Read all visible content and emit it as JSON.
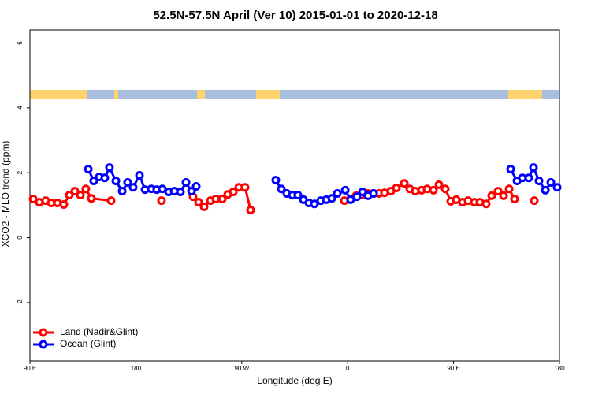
{
  "chart_data": {
    "type": "line",
    "title": "52.5N-57.5N April (Ver 10)   2015-01-01 to 2020-12-18",
    "x_label": "Longitude (deg E)",
    "y_label": "XCO2 - MLO trend (ppm)",
    "xlim": [
      90,
      540
    ],
    "xticks": [
      {
        "value": 90,
        "label": "90 E"
      },
      180,
      {
        "value": 270,
        "label": "90 W"
      },
      {
        "value": 360,
        "label": "0"
      },
      {
        "value": 450,
        "label": "90 E"
      },
      {
        "value": 540,
        "label": "180"
      }
    ],
    "ylim": [
      -3.8,
      6.4
    ],
    "yticks": [
      -2,
      0,
      2,
      4,
      6
    ],
    "legend": "bottom-left",
    "series": [
      {
        "name": "Land (Nadir&Glint)",
        "color": "#ff0000",
        "x": [
          92.7,
          98.0,
          103.4,
          108.1,
          113.4,
          118.8,
          123.5,
          128.2,
          132.9,
          137.5,
          142.2,
          159.0,
          null,
          201.8,
          null,
          228.6,
          233.3,
          238.0,
          243.4,
          248.0,
          253.4,
          258.1,
          262.8,
          267.5,
          272.8,
          277.5,
          null,
          357.2,
          362.5,
          367.2,
          371.9,
          377.3,
          382.0,
          386.7,
          391.3,
          396.7,
          401.4,
          408.1,
          412.8,
          417.5,
          422.8,
          427.5,
          432.9,
          437.6,
          442.9,
          447.6,
          452.3,
          457.6,
          462.3,
          467.7,
          472.4,
          477.7,
          482.4,
          487.8,
          492.5,
          497.2,
          501.8,
          null,
          518.6
        ],
        "values": [
          1.19,
          1.09,
          1.14,
          1.07,
          1.07,
          1.02,
          1.31,
          1.43,
          1.31,
          1.5,
          1.21,
          1.14,
          null,
          1.14,
          null,
          1.26,
          1.09,
          0.95,
          1.14,
          1.19,
          1.19,
          1.33,
          1.41,
          1.55,
          1.55,
          0.85,
          null,
          1.14,
          1.19,
          1.29,
          1.31,
          1.36,
          1.36,
          1.36,
          1.38,
          1.43,
          1.53,
          1.67,
          1.5,
          1.43,
          1.46,
          1.5,
          1.46,
          1.63,
          1.5,
          1.12,
          1.17,
          1.09,
          1.14,
          1.09,
          1.09,
          1.04,
          1.29,
          1.43,
          1.29,
          1.5,
          1.19,
          null,
          1.14
        ]
      },
      {
        "name": "Ocean (Glint)",
        "color": "#0000ff",
        "x": [
          139.6,
          144.2,
          148.9,
          153.6,
          157.6,
          163.0,
          168.4,
          173.0,
          177.7,
          183.1,
          187.8,
          193.1,
          197.8,
          202.5,
          207.9,
          212.6,
          217.9,
          222.6,
          227.3,
          231.3,
          null,
          298.9,
          303.6,
          308.3,
          313.0,
          317.7,
          322.4,
          327.1,
          331.7,
          337.1,
          341.8,
          346.5,
          351.2,
          357.9,
          362.5,
          367.9,
          372.6,
          377.3,
          382.0,
          null,
          498.5,
          503.9,
          508.5,
          513.9,
          517.9,
          522.6,
          528.0,
          532.7,
          538.0
        ],
        "values": [
          2.11,
          1.75,
          1.87,
          1.84,
          2.16,
          1.75,
          1.43,
          1.7,
          1.55,
          1.92,
          1.48,
          1.5,
          1.48,
          1.5,
          1.41,
          1.43,
          1.41,
          1.7,
          1.43,
          1.58,
          null,
          1.77,
          1.5,
          1.36,
          1.31,
          1.31,
          1.17,
          1.07,
          1.04,
          1.14,
          1.17,
          1.21,
          1.36,
          1.46,
          1.17,
          1.26,
          1.41,
          1.29,
          1.36,
          null,
          2.11,
          1.75,
          1.84,
          1.84,
          2.16,
          1.75,
          1.46,
          1.7,
          1.55
        ]
      }
    ]
  }
}
